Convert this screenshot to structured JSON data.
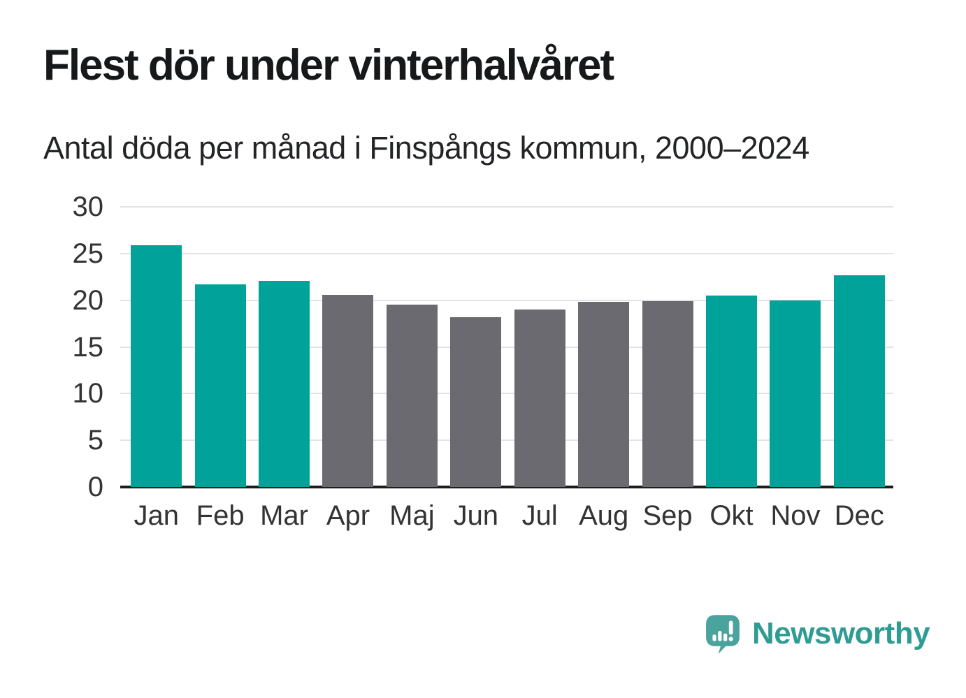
{
  "title": "Flest dör under vinterhalvåret",
  "subtitle": "Antal döda per månad i Finspångs kommun, 2000–2024",
  "chart_data": {
    "type": "bar",
    "categories": [
      "Jan",
      "Feb",
      "Mar",
      "Apr",
      "Maj",
      "Jun",
      "Jul",
      "Aug",
      "Sep",
      "Okt",
      "Nov",
      "Dec"
    ],
    "values": [
      25.9,
      21.7,
      22.1,
      20.6,
      19.5,
      18.2,
      19.0,
      19.8,
      19.9,
      20.5,
      20.0,
      22.7
    ],
    "highlighted_categories": [
      "Jan",
      "Feb",
      "Mar",
      "Okt",
      "Nov",
      "Dec"
    ],
    "y_ticks": [
      0,
      5,
      10,
      15,
      20,
      25,
      30
    ],
    "ylim": [
      0,
      30
    ],
    "grid": true,
    "xlabel": "",
    "ylabel": "",
    "colors": {
      "winter_bar": "#00a29a",
      "summer_bar": "#6b6a71",
      "gridline": "#e3e3e3",
      "baseline": "#1d1d1d",
      "tick_text": "#333333"
    }
  },
  "branding": {
    "logo_text": "Newsworthy",
    "logo_text_color": "#2f9c93",
    "logo_bubble_color": "#4aa39d",
    "logo_icon": "speech-bubble-bar-chart-icon"
  }
}
